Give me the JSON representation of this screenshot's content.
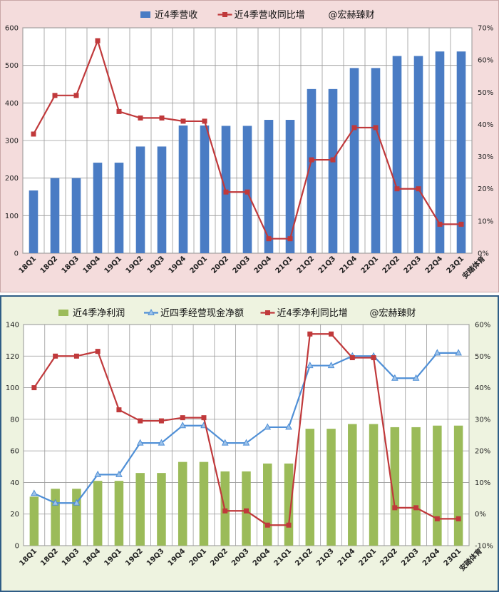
{
  "chart_data": [
    {
      "type": "bar",
      "categories": [
        "18Q1",
        "18Q2",
        "18Q3",
        "18Q4",
        "19Q1",
        "19Q2",
        "19Q3",
        "19Q4",
        "20Q1",
        "20Q2",
        "20Q3",
        "20Q4",
        "21Q1",
        "21Q2",
        "21Q3",
        "21Q4",
        "22Q1",
        "22Q2",
        "22Q3",
        "22Q4",
        "23Q1"
      ],
      "extra_label": "安踏体育",
      "series": [
        {
          "name": "近4季营收",
          "kind": "bar",
          "axis": "left",
          "color": "#4a7cc4",
          "values": [
            167,
            200,
            200,
            241,
            241,
            284,
            284,
            340,
            340,
            339,
            339,
            355,
            355,
            437,
            437,
            493,
            493,
            525,
            525,
            537,
            537
          ]
        },
        {
          "name": "近4季营收同比增",
          "kind": "line",
          "axis": "right",
          "color": "#c0393b",
          "values": [
            37,
            49,
            49,
            66,
            44,
            42,
            42,
            41,
            41,
            19,
            19,
            4.5,
            4.5,
            29,
            29,
            39,
            39,
            20,
            20,
            9,
            9
          ]
        }
      ],
      "legend_note": "@宏赫臻财",
      "ylim": [
        0,
        600
      ],
      "yticks": [
        0,
        100,
        200,
        300,
        400,
        500,
        600
      ],
      "y2lim": [
        0,
        70
      ],
      "y2ticks": [
        "0%",
        "10%",
        "20%",
        "30%",
        "40%",
        "50%",
        "60%",
        "70%"
      ],
      "grid": true,
      "legend_position": "top"
    },
    {
      "type": "bar",
      "categories": [
        "18Q1",
        "18Q2",
        "18Q3",
        "18Q4",
        "19Q1",
        "19Q2",
        "19Q3",
        "19Q4",
        "20Q1",
        "20Q2",
        "20Q3",
        "20Q4",
        "21Q1",
        "21Q2",
        "21Q3",
        "21Q4",
        "22Q1",
        "22Q2",
        "22Q3",
        "22Q4",
        "23Q1"
      ],
      "extra_label": "安踏体育",
      "series": [
        {
          "name": "近4季净利润",
          "kind": "bar",
          "axis": "left",
          "color": "#9bbb59",
          "values": [
            31,
            36,
            36,
            41,
            41,
            46,
            46,
            53,
            53,
            47,
            47,
            52,
            52,
            74,
            74,
            77,
            77,
            75,
            75,
            76,
            76
          ]
        },
        {
          "name": "近四季经营现金净额",
          "kind": "line",
          "axis": "left",
          "color": "#4f8fd6",
          "values": [
            33,
            27,
            27,
            45,
            45,
            65,
            65,
            76,
            76,
            65,
            65,
            75,
            75,
            114,
            114,
            120,
            120,
            106,
            106,
            122,
            122
          ]
        },
        {
          "name": "近4季净利同比增",
          "kind": "line",
          "axis": "right",
          "color": "#c0393b",
          "values": [
            40,
            50,
            50,
            51.5,
            33,
            29.5,
            29.5,
            30.5,
            30.5,
            1,
            1,
            -3.5,
            -3.5,
            57,
            57,
            49.5,
            49.5,
            2,
            2,
            -1.5,
            -1.5
          ]
        }
      ],
      "legend_note": "@宏赫臻财",
      "ylim": [
        0,
        140
      ],
      "yticks": [
        0,
        20,
        40,
        60,
        80,
        100,
        120,
        140
      ],
      "y2lim": [
        -10,
        60
      ],
      "y2ticks": [
        "-10%",
        "0%",
        "10%",
        "20%",
        "30%",
        "40%",
        "50%",
        "60%"
      ],
      "grid": true,
      "legend_position": "top"
    }
  ]
}
